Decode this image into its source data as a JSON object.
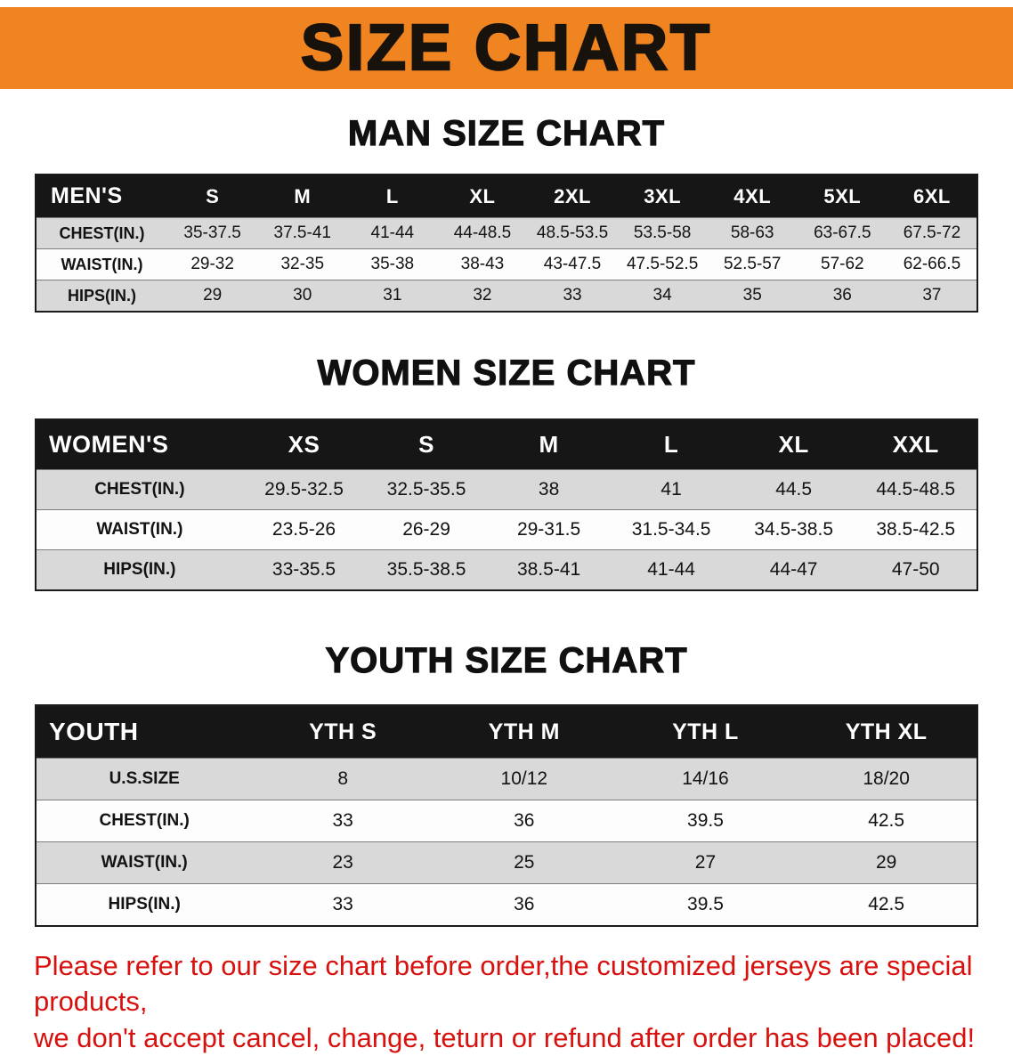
{
  "banner": {
    "title": "SIZE CHART",
    "background": "#ef8420"
  },
  "sections": {
    "men": {
      "heading": "MAN SIZE CHART",
      "table": {
        "header": [
          "MEN'S",
          "S",
          "M",
          "L",
          "XL",
          "2XL",
          "3XL",
          "4XL",
          "5XL",
          "6XL"
        ],
        "rows": [
          [
            "CHEST(IN.)",
            "35-37.5",
            "37.5-41",
            "41-44",
            "44-48.5",
            "48.5-53.5",
            "53.5-58",
            "58-63",
            "63-67.5",
            "67.5-72"
          ],
          [
            "WAIST(IN.)",
            "29-32",
            "32-35",
            "35-38",
            "38-43",
            "43-47.5",
            "47.5-52.5",
            "52.5-57",
            "57-62",
            "62-66.5"
          ],
          [
            "HIPS(IN.)",
            "29",
            "30",
            "31",
            "32",
            "33",
            "34",
            "35",
            "36",
            "37"
          ]
        ]
      }
    },
    "women": {
      "heading": "WOMEN SIZE CHART",
      "table": {
        "header": [
          "WOMEN'S",
          "XS",
          "S",
          "M",
          "L",
          "XL",
          "XXL"
        ],
        "rows": [
          [
            "CHEST(IN.)",
            "29.5-32.5",
            "32.5-35.5",
            "38",
            "41",
            "44.5",
            "44.5-48.5"
          ],
          [
            "WAIST(IN.)",
            "23.5-26",
            "26-29",
            "29-31.5",
            "31.5-34.5",
            "34.5-38.5",
            "38.5-42.5"
          ],
          [
            "HIPS(IN.)",
            "33-35.5",
            "35.5-38.5",
            "38.5-41",
            "41-44",
            "44-47",
            "47-50"
          ]
        ]
      }
    },
    "youth": {
      "heading": "YOUTH SIZE CHART",
      "table": {
        "header": [
          "YOUTH",
          "YTH S",
          "YTH M",
          "YTH L",
          "YTH XL"
        ],
        "rows": [
          [
            "U.S.SIZE",
            "8",
            "10/12",
            "14/16",
            "18/20"
          ],
          [
            "CHEST(IN.)",
            "33",
            "36",
            "39.5",
            "42.5"
          ],
          [
            "WAIST(IN.)",
            "23",
            "25",
            "27",
            "29"
          ],
          [
            "HIPS(IN.)",
            "33",
            "36",
            "39.5",
            "42.5"
          ]
        ]
      }
    }
  },
  "colors": {
    "table_header_bg": "#161616",
    "row_gray": "#d9d9d9",
    "row_white": "#fdfdfd"
  },
  "disclaimer": {
    "color": "#d8110e",
    "line1": "Please refer to our size chart before order,the customized jerseys are special products,",
    "line2": "we don't accept cancel, change, teturn or refund after order has been placed!"
  }
}
